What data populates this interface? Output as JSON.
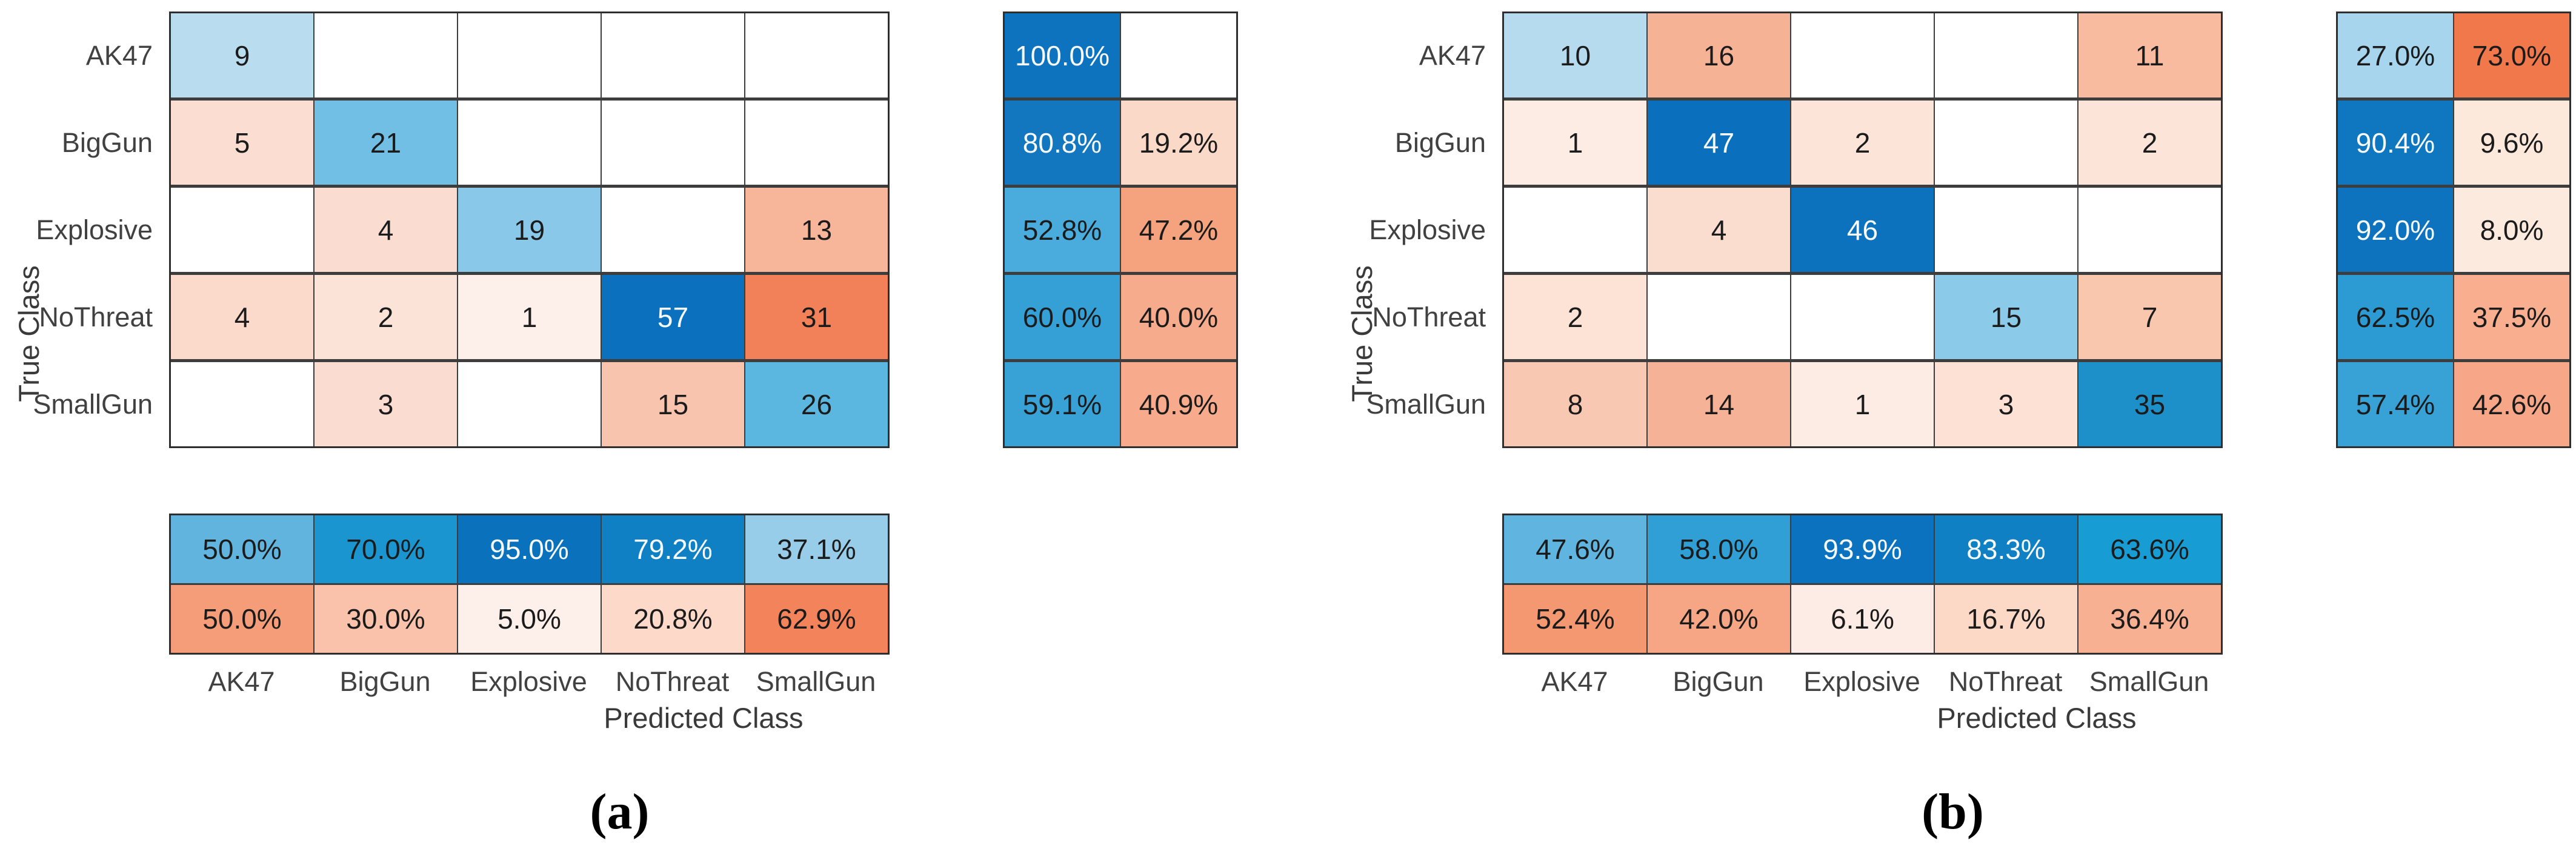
{
  "figure": {
    "ylabel": "True Class",
    "xlabel": "Predicted Class",
    "classes": [
      "AK47",
      "BigGun",
      "Explosive",
      "NoThreat",
      "SmallGun"
    ],
    "text_dark": "#1b1b1b",
    "text_light": "#f8fbfd",
    "accent_blue": "#0b70bd",
    "accent_orange": "#f0784a",
    "panels": [
      {
        "caption": "(a)",
        "matrix": {
          "rows": [
            [
              {
                "v": "9",
                "bg": "#b9dcee"
              },
              {
                "v": "",
                "bg": "#ffffff"
              },
              {
                "v": "",
                "bg": "#ffffff"
              },
              {
                "v": "",
                "bg": "#ffffff"
              },
              {
                "v": "",
                "bg": "#ffffff"
              }
            ],
            [
              {
                "v": "5",
                "bg": "#fbddd1"
              },
              {
                "v": "21",
                "bg": "#71bfe4"
              },
              {
                "v": "",
                "bg": "#ffffff"
              },
              {
                "v": "",
                "bg": "#ffffff"
              },
              {
                "v": "",
                "bg": "#ffffff"
              }
            ],
            [
              {
                "v": "",
                "bg": "#ffffff"
              },
              {
                "v": "4",
                "bg": "#fbdcd0"
              },
              {
                "v": "19",
                "bg": "#89c8e8"
              },
              {
                "v": "",
                "bg": "#ffffff"
              },
              {
                "v": "13",
                "bg": "#f7b599"
              }
            ],
            [
              {
                "v": "4",
                "bg": "#fbd9cb"
              },
              {
                "v": "2",
                "bg": "#fce3d7"
              },
              {
                "v": "1",
                "bg": "#fdefe9"
              },
              {
                "v": "57",
                "bg": "#0b70bd",
                "fg": "light"
              },
              {
                "v": "31",
                "bg": "#f28159"
              }
            ],
            [
              {
                "v": "",
                "bg": "#ffffff"
              },
              {
                "v": "3",
                "bg": "#fbdcd0"
              },
              {
                "v": "",
                "bg": "#ffffff"
              },
              {
                "v": "15",
                "bg": "#f9c4ad"
              },
              {
                "v": "26",
                "bg": "#5cb7e0"
              }
            ]
          ]
        },
        "row_summary": {
          "rows": [
            [
              {
                "v": "100.0%",
                "bg": "#0d73be",
                "fg": "light"
              },
              {
                "v": "",
                "bg": "#ffffff"
              }
            ],
            [
              {
                "v": "80.8%",
                "bg": "#1377c0",
                "fg": "light"
              },
              {
                "v": "19.2%",
                "bg": "#fbd9c8"
              }
            ],
            [
              {
                "v": "52.8%",
                "bg": "#4aacdc"
              },
              {
                "v": "47.2%",
                "bg": "#f5a27e"
              }
            ],
            [
              {
                "v": "60.0%",
                "bg": "#35a0d6"
              },
              {
                "v": "40.0%",
                "bg": "#f7ab8d"
              }
            ],
            [
              {
                "v": "59.1%",
                "bg": "#38a2d7"
              },
              {
                "v": "40.9%",
                "bg": "#f7aa8c"
              }
            ]
          ]
        },
        "col_summary": {
          "rows": [
            [
              {
                "v": "50.0%",
                "bg": "#61b4de"
              },
              {
                "v": "70.0%",
                "bg": "#1b95cf"
              },
              {
                "v": "95.0%",
                "bg": "#0a71bd",
                "fg": "light"
              },
              {
                "v": "79.2%",
                "bg": "#1080c4",
                "fg": "light"
              },
              {
                "v": "37.1%",
                "bg": "#97cde9"
              }
            ],
            [
              {
                "v": "50.0%",
                "bg": "#f59d79"
              },
              {
                "v": "30.0%",
                "bg": "#fac2aa"
              },
              {
                "v": "5.0%",
                "bg": "#fdf0ea"
              },
              {
                "v": "20.8%",
                "bg": "#fcd9c9"
              },
              {
                "v": "62.9%",
                "bg": "#f2835b"
              }
            ]
          ]
        }
      },
      {
        "caption": "(b)",
        "matrix": {
          "rows": [
            [
              {
                "v": "10",
                "bg": "#b7dbee"
              },
              {
                "v": "16",
                "bg": "#f6b295"
              },
              {
                "v": "",
                "bg": "#ffffff"
              },
              {
                "v": "",
                "bg": "#ffffff"
              },
              {
                "v": "11",
                "bg": "#f8bb9f"
              }
            ],
            [
              {
                "v": "1",
                "bg": "#fdece4"
              },
              {
                "v": "47",
                "bg": "#0a70bd",
                "fg": "light"
              },
              {
                "v": "2",
                "bg": "#fce4d8"
              },
              {
                "v": "",
                "bg": "#ffffff"
              },
              {
                "v": "2",
                "bg": "#fce4d8"
              }
            ],
            [
              {
                "v": "",
                "bg": "#ffffff"
              },
              {
                "v": "4",
                "bg": "#fbddd0"
              },
              {
                "v": "46",
                "bg": "#0c72be",
                "fg": "light"
              },
              {
                "v": "",
                "bg": "#ffffff"
              },
              {
                "v": "",
                "bg": "#ffffff"
              }
            ],
            [
              {
                "v": "2",
                "bg": "#fce3d6"
              },
              {
                "v": "",
                "bg": "#ffffff"
              },
              {
                "v": "",
                "bg": "#ffffff"
              },
              {
                "v": "15",
                "bg": "#8ccae9"
              },
              {
                "v": "7",
                "bg": "#f9c6ae"
              }
            ],
            [
              {
                "v": "8",
                "bg": "#f9c8b2"
              },
              {
                "v": "14",
                "bg": "#f6b296"
              },
              {
                "v": "1",
                "bg": "#fdece4"
              },
              {
                "v": "3",
                "bg": "#fce1d4"
              },
              {
                "v": "35",
                "bg": "#1e90c9"
              }
            ]
          ]
        },
        "row_summary": {
          "rows": [
            [
              {
                "v": "27.0%",
                "bg": "#a7d5ed"
              },
              {
                "v": "73.0%",
                "bg": "#f0784a"
              }
            ],
            [
              {
                "v": "90.4%",
                "bg": "#0f76c0",
                "fg": "light"
              },
              {
                "v": "9.6%",
                "bg": "#fde8dc"
              }
            ],
            [
              {
                "v": "92.0%",
                "bg": "#0d73be",
                "fg": "light"
              },
              {
                "v": "8.0%",
                "bg": "#fdeade"
              }
            ],
            [
              {
                "v": "62.5%",
                "bg": "#2c9bd4"
              },
              {
                "v": "37.5%",
                "bg": "#f8ae8f"
              }
            ],
            [
              {
                "v": "57.4%",
                "bg": "#38a2d7"
              },
              {
                "v": "42.6%",
                "bg": "#f7a787"
              }
            ]
          ]
        },
        "col_summary": {
          "rows": [
            [
              {
                "v": "47.6%",
                "bg": "#5fb5df"
              },
              {
                "v": "58.0%",
                "bg": "#2f9fd5"
              },
              {
                "v": "93.9%",
                "bg": "#0a72be",
                "fg": "light"
              },
              {
                "v": "83.3%",
                "bg": "#1080c4",
                "fg": "light"
              },
              {
                "v": "63.6%",
                "bg": "#189cd4"
              }
            ],
            [
              {
                "v": "52.4%",
                "bg": "#f39871"
              },
              {
                "v": "42.0%",
                "bg": "#f6a685"
              },
              {
                "v": "6.1%",
                "bg": "#fdece5"
              },
              {
                "v": "16.7%",
                "bg": "#fcd8c7"
              },
              {
                "v": "36.4%",
                "bg": "#f8b093"
              }
            ]
          ]
        }
      }
    ]
  },
  "chart_data": [
    {
      "type": "heatmap",
      "subtype": "confusion-matrix",
      "title": "(a)",
      "xlabel": "Predicted Class",
      "ylabel": "True Class",
      "classes": [
        "AK47",
        "BigGun",
        "Explosive",
        "NoThreat",
        "SmallGun"
      ],
      "matrix": [
        [
          9,
          null,
          null,
          null,
          null
        ],
        [
          5,
          21,
          null,
          null,
          null
        ],
        [
          null,
          4,
          19,
          null,
          13
        ],
        [
          4,
          2,
          1,
          57,
          31
        ],
        [
          null,
          3,
          null,
          15,
          26
        ]
      ],
      "row_summary_pct": [
        [
          100.0,
          null
        ],
        [
          80.8,
          19.2
        ],
        [
          52.8,
          47.2
        ],
        [
          60.0,
          40.0
        ],
        [
          59.1,
          40.9
        ]
      ],
      "col_summary_pct": [
        [
          50.0,
          70.0,
          95.0,
          79.2,
          37.1
        ],
        [
          50.0,
          30.0,
          5.0,
          20.8,
          62.9
        ]
      ],
      "legend_position": "none",
      "grid": true
    },
    {
      "type": "heatmap",
      "subtype": "confusion-matrix",
      "title": "(b)",
      "xlabel": "Predicted Class",
      "ylabel": "True Class",
      "classes": [
        "AK47",
        "BigGun",
        "Explosive",
        "NoThreat",
        "SmallGun"
      ],
      "matrix": [
        [
          10,
          16,
          null,
          null,
          11
        ],
        [
          1,
          47,
          2,
          null,
          2
        ],
        [
          null,
          4,
          46,
          null,
          null
        ],
        [
          2,
          null,
          null,
          15,
          7
        ],
        [
          8,
          14,
          1,
          3,
          35
        ]
      ],
      "row_summary_pct": [
        [
          27.0,
          73.0
        ],
        [
          90.4,
          9.6
        ],
        [
          92.0,
          8.0
        ],
        [
          62.5,
          37.5
        ],
        [
          57.4,
          42.6
        ]
      ],
      "col_summary_pct": [
        [
          47.6,
          58.0,
          93.9,
          83.3,
          63.6
        ],
        [
          52.4,
          42.0,
          6.1,
          16.7,
          36.4
        ]
      ],
      "legend_position": "none",
      "grid": true
    }
  ]
}
